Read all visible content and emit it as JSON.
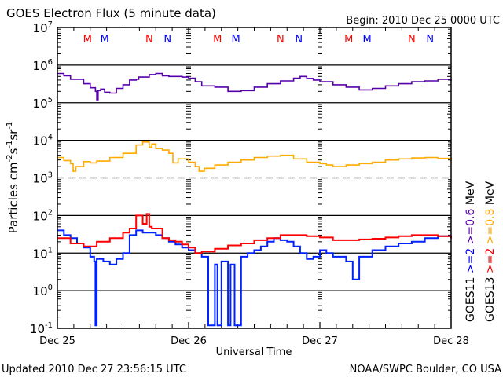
{
  "chart_data": {
    "type": "line",
    "title": "GOES Electron Flux (5 minute data)",
    "begin_label": "Begin: 2010 Dec 25 0000 UTC",
    "xlabel": "Universal Time",
    "ylabel": "Particles cm",
    "ylabel_parts": [
      "Particles cm",
      "-2",
      "s",
      "-1",
      "sr",
      "-1"
    ],
    "y_scale": "log",
    "ylim": [
      0.1,
      10000000
    ],
    "y_ticks": [
      {
        "base": "10",
        "exp": "7",
        "value": 10000000
      },
      {
        "base": "10",
        "exp": "6",
        "value": 1000000
      },
      {
        "base": "10",
        "exp": "5",
        "value": 100000
      },
      {
        "base": "10",
        "exp": "4",
        "value": 10000
      },
      {
        "base": "10",
        "exp": "3",
        "value": 1000
      },
      {
        "base": "10",
        "exp": "2",
        "value": 100
      },
      {
        "base": "10",
        "exp": "1",
        "value": 10
      },
      {
        "base": "10",
        "exp": "0",
        "value": 1
      },
      {
        "base": "10",
        "exp": "-1",
        "value": 0.1
      }
    ],
    "xlim_days": [
      0,
      3
    ],
    "x_ticks": [
      {
        "label": "Dec 25",
        "day": 0
      },
      {
        "label": "Dec 26",
        "day": 1
      },
      {
        "label": "Dec 27",
        "day": 2
      },
      {
        "label": "Dec 28",
        "day": 3
      }
    ],
    "threshold_line": 1000,
    "grid": true,
    "markers": [
      {
        "label": "M",
        "day": 0.23,
        "color": "#ff0000"
      },
      {
        "label": "M",
        "day": 0.36,
        "color": "#0000ff"
      },
      {
        "label": "N",
        "day": 0.7,
        "color": "#ff0000"
      },
      {
        "label": "N",
        "day": 0.84,
        "color": "#0000ff"
      },
      {
        "label": "M",
        "day": 1.22,
        "color": "#ff0000"
      },
      {
        "label": "M",
        "day": 1.36,
        "color": "#0000ff"
      },
      {
        "label": "N",
        "day": 1.7,
        "color": "#ff0000"
      },
      {
        "label": "N",
        "day": 1.84,
        "color": "#0000ff"
      },
      {
        "label": "M",
        "day": 2.22,
        "color": "#ff0000"
      },
      {
        "label": "M",
        "day": 2.36,
        "color": "#0000ff"
      },
      {
        "label": "N",
        "day": 2.7,
        "color": "#ff0000"
      },
      {
        "label": "N",
        "day": 2.84,
        "color": "#0000ff"
      }
    ],
    "legend": {
      "placement": "right",
      "satellite_labels": [
        "GOES11",
        "GOES13"
      ],
      "entries": [
        {
          "text": ">=2",
          "color": "#0000ff"
        },
        {
          "text": ">=2",
          "color": "#ff0000"
        },
        {
          "text": ">=0.6",
          "color": "#5500aa"
        },
        {
          "text": ">=0.8",
          "color": "#ffaa00"
        }
      ],
      "unit": "MeV"
    },
    "series": [
      {
        "name": "GOES11 >=0.6 MeV",
        "color": "#5500aa",
        "x": [
          0,
          0.05,
          0.1,
          0.15,
          0.2,
          0.25,
          0.29,
          0.3,
          0.31,
          0.33,
          0.36,
          0.4,
          0.45,
          0.5,
          0.55,
          0.6,
          0.62,
          0.7,
          0.75,
          0.8,
          0.85,
          0.9,
          0.95,
          1.0,
          1.05,
          1.1,
          1.2,
          1.3,
          1.4,
          1.5,
          1.6,
          1.7,
          1.8,
          1.85,
          1.9,
          1.95,
          2.0,
          2.1,
          2.2,
          2.3,
          2.4,
          2.5,
          2.6,
          2.7,
          2.8,
          2.9,
          3.0
        ],
        "y": [
          600000,
          520000,
          420000,
          420000,
          320000,
          250000,
          200000,
          120000,
          210000,
          230000,
          190000,
          180000,
          240000,
          300000,
          400000,
          420000,
          480000,
          560000,
          600000,
          520000,
          500000,
          500000,
          480000,
          450000,
          360000,
          280000,
          260000,
          200000,
          210000,
          260000,
          320000,
          380000,
          450000,
          500000,
          440000,
          400000,
          360000,
          300000,
          260000,
          220000,
          240000,
          280000,
          320000,
          360000,
          380000,
          420000,
          380000
        ]
      },
      {
        "name": "GOES13 >=0.8 MeV",
        "color": "#ffaa00",
        "x": [
          0,
          0.05,
          0.1,
          0.12,
          0.14,
          0.2,
          0.25,
          0.3,
          0.4,
          0.5,
          0.6,
          0.65,
          0.7,
          0.72,
          0.75,
          0.8,
          0.85,
          0.88,
          0.92,
          1.0,
          1.05,
          1.08,
          1.12,
          1.2,
          1.3,
          1.4,
          1.5,
          1.6,
          1.7,
          1.8,
          1.9,
          2.0,
          2.05,
          2.1,
          2.2,
          2.3,
          2.4,
          2.5,
          2.6,
          2.7,
          2.8,
          2.9,
          3.0
        ],
        "y": [
          3500,
          2900,
          2400,
          1500,
          2000,
          2700,
          2500,
          2800,
          3500,
          4500,
          7500,
          9000,
          6500,
          8000,
          6000,
          5500,
          4500,
          2500,
          3200,
          2600,
          2000,
          1500,
          1800,
          2200,
          2600,
          3000,
          3500,
          3800,
          4000,
          3200,
          2600,
          2400,
          2200,
          2000,
          2200,
          2400,
          2600,
          3000,
          3200,
          3400,
          3500,
          3300,
          2800
        ]
      },
      {
        "name": "GOES11 >=2 MeV",
        "color": "#0022ff",
        "x": [
          0,
          0.05,
          0.1,
          0.15,
          0.2,
          0.25,
          0.28,
          0.29,
          0.3,
          0.35,
          0.4,
          0.45,
          0.5,
          0.55,
          0.6,
          0.65,
          0.7,
          0.75,
          0.8,
          0.85,
          0.9,
          0.95,
          1.0,
          1.05,
          1.1,
          1.15,
          1.2,
          1.22,
          1.25,
          1.3,
          1.32,
          1.35,
          1.4,
          1.45,
          1.5,
          1.55,
          1.6,
          1.65,
          1.7,
          1.75,
          1.8,
          1.85,
          1.9,
          1.95,
          2.0,
          2.05,
          2.1,
          2.2,
          2.25,
          2.3,
          2.4,
          2.5,
          2.6,
          2.7,
          2.8,
          2.9,
          3.0
        ],
        "y": [
          40,
          30,
          25,
          18,
          14,
          8,
          6,
          0.12,
          7,
          6,
          5,
          7,
          10,
          30,
          40,
          35,
          35,
          30,
          25,
          20,
          17,
          14,
          12,
          10,
          8,
          0.12,
          5,
          0.12,
          6,
          0.12,
          5,
          0.12,
          8,
          10,
          12,
          15,
          20,
          25,
          22,
          20,
          15,
          10,
          7,
          8,
          12,
          10,
          8,
          6,
          2,
          8,
          12,
          15,
          18,
          20,
          25,
          28,
          25
        ]
      },
      {
        "name": "GOES13 >=2 MeV",
        "color": "#ff0000",
        "x": [
          0,
          0.1,
          0.2,
          0.3,
          0.4,
          0.5,
          0.55,
          0.6,
          0.65,
          0.68,
          0.7,
          0.72,
          0.75,
          0.8,
          0.85,
          0.9,
          0.95,
          1.0,
          1.05,
          1.1,
          1.2,
          1.3,
          1.4,
          1.5,
          1.6,
          1.7,
          1.8,
          1.9,
          2.0,
          2.1,
          2.2,
          2.3,
          2.4,
          2.5,
          2.6,
          2.7,
          2.8,
          2.9,
          3.0
        ],
        "y": [
          25,
          18,
          15,
          20,
          25,
          35,
          45,
          100,
          60,
          110,
          50,
          45,
          45,
          25,
          22,
          20,
          17,
          14,
          10,
          11,
          13,
          16,
          18,
          22,
          25,
          30,
          30,
          28,
          26,
          22,
          22,
          23,
          24,
          26,
          28,
          30,
          30,
          28,
          25
        ]
      }
    ]
  },
  "footer": {
    "updated": "Updated 2010 Dec 27 23:56:15 UTC",
    "credit": "NOAA/SWPC Boulder, CO USA"
  }
}
